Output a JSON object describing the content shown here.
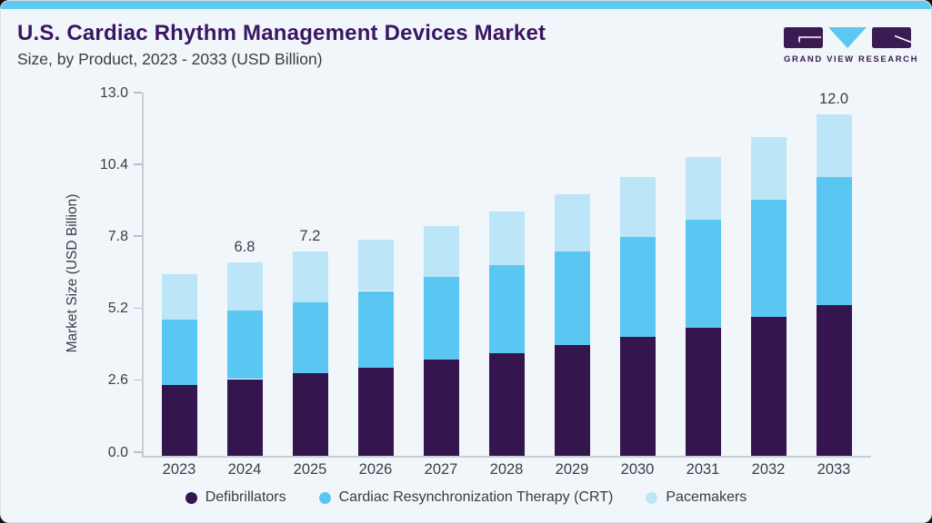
{
  "card": {
    "background": "#f1f6fa",
    "top_strip_color": "#5fc9f2",
    "border_color": "#d9dfe5"
  },
  "header": {
    "title": "U.S. Cardiac Rhythm Management Devices Market",
    "subtitle": "Size, by Product, 2023 - 2033 (USD Billion)",
    "title_color": "#3a1663"
  },
  "logo": {
    "brand": "GRAND VIEW RESEARCH",
    "purple": "#3b1c52",
    "blue": "#5ac8f0"
  },
  "chart_data": {
    "type": "bar",
    "stacked": true,
    "title": "U.S. Cardiac Rhythm Management Devices Market",
    "subtitle": "Size, by Product, 2023 - 2033 (USD Billion)",
    "categories": [
      "2023",
      "2024",
      "2025",
      "2026",
      "2027",
      "2028",
      "2029",
      "2030",
      "2031",
      "2032",
      "2033"
    ],
    "series": [
      {
        "name": "Defibrillators",
        "color": "#34154d",
        "values": [
          2.5,
          2.7,
          2.9,
          3.1,
          3.4,
          3.6,
          3.9,
          4.2,
          4.5,
          4.9,
          5.3
        ]
      },
      {
        "name": "Cardiac Resynchronization Therapy (CRT)",
        "color": "#5ac7f2",
        "values": [
          2.3,
          2.4,
          2.5,
          2.7,
          2.9,
          3.1,
          3.3,
          3.5,
          3.8,
          4.1,
          4.5
        ]
      },
      {
        "name": "Pacemakers",
        "color": "#bce5f8",
        "values": [
          1.6,
          1.7,
          1.8,
          1.8,
          1.8,
          1.9,
          2.0,
          2.1,
          2.2,
          2.2,
          2.2
        ]
      }
    ],
    "totals": [
      6.4,
      6.8,
      7.2,
      7.6,
      8.1,
      8.6,
      9.2,
      9.8,
      10.5,
      11.2,
      12.0
    ],
    "total_labels": [
      "",
      "6.8",
      "7.2",
      "",
      "",
      "",
      "",
      "",
      "",
      "",
      "12.0"
    ],
    "ylabel": "Market Size (USD Billion)",
    "xlabel": "",
    "yticks": [
      "0.0",
      "2.6",
      "5.2",
      "7.8",
      "10.4",
      "13.0"
    ],
    "ylim": [
      0,
      13.0
    ],
    "grid": false,
    "legend_position": "bottom"
  }
}
